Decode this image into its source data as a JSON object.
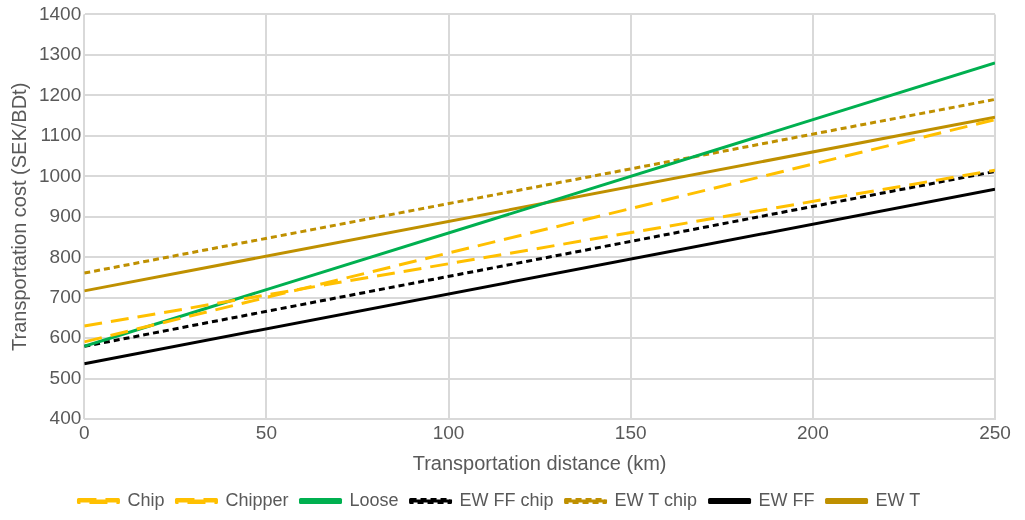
{
  "chart_data": {
    "type": "line",
    "xlabel": "Transportation distance (km)",
    "ylabel": "Transportation cost (SEK/BDt)",
    "x": [
      0,
      250
    ],
    "series": [
      {
        "name": "Chip",
        "color": "#ffc000",
        "line_style": "dashed",
        "values": [
          630,
          1015
        ]
      },
      {
        "name": "Chipper",
        "color": "#ffc000",
        "line_style": "dashed",
        "values": [
          591,
          1140
        ]
      },
      {
        "name": "Loose",
        "color": "#00b050",
        "line_style": "solid",
        "values": [
          580,
          1280
        ]
      },
      {
        "name": "EW FF chip",
        "color": "#000000",
        "line_style": "dotted",
        "values": [
          580,
          1012
        ]
      },
      {
        "name": "EW T chip",
        "color": "#bf9000",
        "line_style": "dotted",
        "values": [
          761,
          1190
        ]
      },
      {
        "name": "EW FF",
        "color": "#000000",
        "line_style": "solid",
        "values": [
          537,
          968
        ]
      },
      {
        "name": "EW T",
        "color": "#bf9000",
        "line_style": "solid",
        "values": [
          717,
          1146
        ]
      }
    ],
    "xlim": [
      0,
      250
    ],
    "xticks": [
      0,
      50,
      100,
      150,
      200,
      250
    ],
    "ylim": [
      400,
      1400
    ],
    "yticks": [
      400,
      500,
      600,
      700,
      800,
      900,
      1000,
      1100,
      1200,
      1300,
      1400
    ],
    "grid": true,
    "legend": "bottom",
    "marker": "none"
  }
}
